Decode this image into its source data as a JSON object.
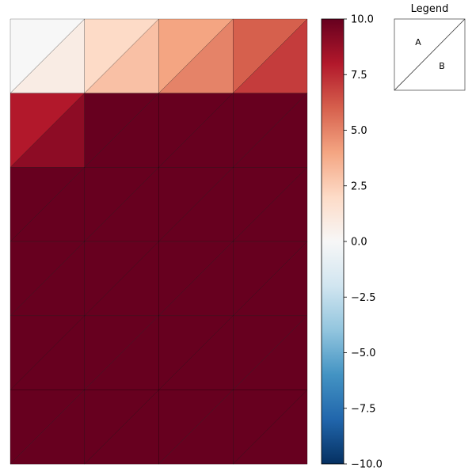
{
  "chart_data": {
    "type": "heatmap",
    "subtype": "split-cell triangle heatmap",
    "columns": 4,
    "rows": 6,
    "cell_split": "diagonal from bottom-left to top-right; A = upper-left triangle, B = lower-right triangle",
    "values_A": [
      [
        0.0,
        2.0,
        4.0,
        6.0
      ],
      [
        8.0,
        10.0,
        10.0,
        10.0
      ],
      [
        10.0,
        10.0,
        10.0,
        10.0
      ],
      [
        10.0,
        10.0,
        10.0,
        10.0
      ],
      [
        10.0,
        10.0,
        10.0,
        10.0
      ],
      [
        10.0,
        10.0,
        10.0,
        10.0
      ]
    ],
    "values_B": [
      [
        0.8,
        3.0,
        5.0,
        7.0
      ],
      [
        9.0,
        10.0,
        10.0,
        10.0
      ],
      [
        10.0,
        10.0,
        10.0,
        10.0
      ],
      [
        10.0,
        10.0,
        10.0,
        10.0
      ],
      [
        10.0,
        10.0,
        10.0,
        10.0
      ],
      [
        10.0,
        10.0,
        10.0,
        10.0
      ]
    ],
    "colormap": "RdBu_r",
    "colormap_stops": [
      "#053061",
      "#2166ac",
      "#4393c3",
      "#92c5de",
      "#d1e5f0",
      "#f7f7f7",
      "#fddbc7",
      "#f4a582",
      "#d6604d",
      "#b2182b",
      "#67001f"
    ],
    "vmin": -10.0,
    "vmax": 10.0,
    "colorbar_ticks": [
      "10.0",
      "7.5",
      "5.0",
      "2.5",
      "0.0",
      "−2.5",
      "−5.0",
      "−7.5",
      "−10.0"
    ],
    "legend": {
      "title": "Legend",
      "labels": [
        "A",
        "B"
      ],
      "placement": "top-right"
    },
    "grid": false
  }
}
